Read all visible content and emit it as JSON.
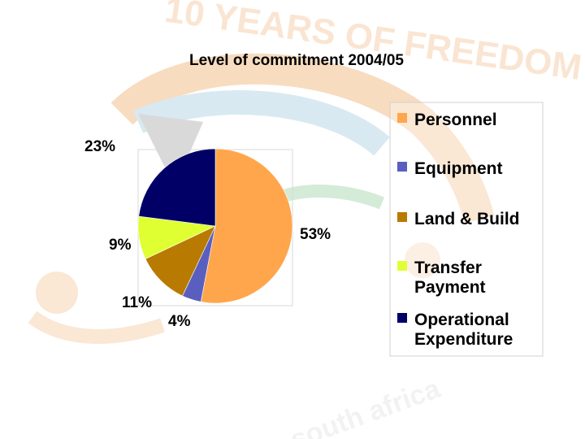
{
  "chart_data": {
    "type": "pie",
    "title": "Level of commitment 2004/05",
    "categories": [
      "Personnel",
      "Equipment",
      "Land &  Build",
      "Transfer Payment",
      "Operational Expenditure"
    ],
    "values": [
      53,
      4,
      11,
      9,
      23
    ],
    "data_labels": [
      "53%",
      "4%",
      "11%",
      "9%",
      "23%"
    ],
    "colors": [
      "#FFA64D",
      "#5A5FBF",
      "#B87A00",
      "#E0FF33",
      "#000066"
    ],
    "legend_position": "right",
    "legend_entries": [
      {
        "lines": [
          "Personnel"
        ]
      },
      {
        "lines": [
          "Equipment"
        ]
      },
      {
        "lines": [
          "Land &  Build"
        ]
      },
      {
        "lines": [
          "Transfer",
          "Payment"
        ]
      },
      {
        "lines": [
          "Operational",
          "Expenditure"
        ]
      }
    ]
  },
  "watermark": {
    "text_top": "10 YEARS OF FREEDOM",
    "text_bottom": "south africa"
  }
}
